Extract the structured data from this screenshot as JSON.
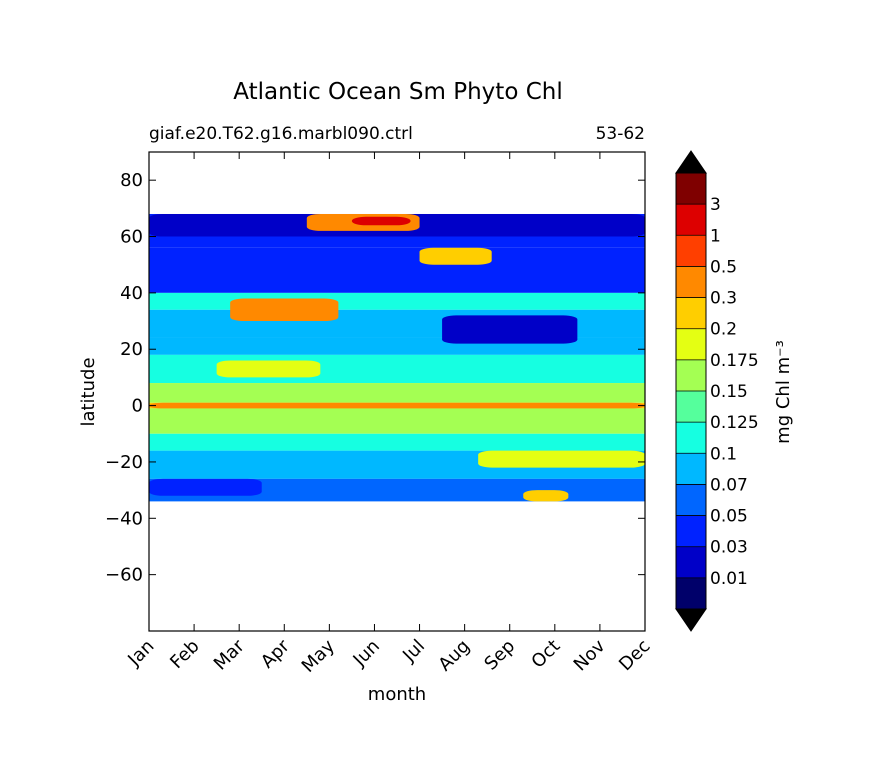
{
  "chart_data": {
    "type": "heatmap",
    "title": "Atlantic Ocean Sm Phyto Chl",
    "subtitle_left": "giaf.e20.T62.g16.marbl090.ctrl",
    "subtitle_right": "53-62",
    "xlabel": "month",
    "ylabel": "latitude",
    "x_ticks": [
      "Jan",
      "Feb",
      "Mar",
      "Apr",
      "May",
      "Jun",
      "Jul",
      "Aug",
      "Sep",
      "Oct",
      "Nov",
      "Dec"
    ],
    "xlim": [
      1,
      12
    ],
    "y_ticks": [
      "80",
      "60",
      "40",
      "20",
      "0",
      "−20",
      "−40",
      "−60"
    ],
    "ylim": [
      -80,
      90
    ],
    "data_extent_lat": [
      -34,
      68
    ],
    "colorbar_label": "mg Chl m⁻³",
    "colorbar_levels": [
      "0.01",
      "0.03",
      "0.05",
      "0.07",
      "0.1",
      "0.125",
      "0.15",
      "0.175",
      "0.2",
      "0.3",
      "0.5",
      "1",
      "3"
    ],
    "colorbar_colors": [
      "#00006a",
      "#0000c8",
      "#0022ff",
      "#0066ff",
      "#00b8ff",
      "#16ffe1",
      "#55ff9c",
      "#a4ff53",
      "#e4ff13",
      "#ffce00",
      "#ff8900",
      "#ff3f00",
      "#dd0000",
      "#7f0000"
    ],
    "colorbar_extend": "both",
    "grid": false,
    "regions": [
      {
        "lat": [
          60,
          68
        ],
        "month": [
          1,
          12
        ],
        "level_index": 1
      },
      {
        "lat": [
          62,
          68
        ],
        "month": [
          4.5,
          7
        ],
        "level_index": 10
      },
      {
        "lat": [
          64,
          67
        ],
        "month": [
          5.5,
          6.8
        ],
        "level_index": 12
      },
      {
        "lat": [
          50,
          56
        ],
        "month": [
          7,
          8.6
        ],
        "level_index": 9
      },
      {
        "lat": [
          30,
          38
        ],
        "month": [
          2.8,
          5.2
        ],
        "level_index": 10
      },
      {
        "lat": [
          22,
          32
        ],
        "month": [
          7.5,
          10.5
        ],
        "level_index": 1
      },
      {
        "lat": [
          10,
          16
        ],
        "month": [
          2.5,
          4.8
        ],
        "level_index": 8
      },
      {
        "lat": [
          -1,
          1
        ],
        "month": [
          1,
          12
        ],
        "level_index": 10
      },
      {
        "lat": [
          -22,
          -16
        ],
        "month": [
          8.3,
          12
        ],
        "level_index": 8
      },
      {
        "lat": [
          -34,
          -30
        ],
        "month": [
          9.3,
          10.3
        ],
        "level_index": 9
      },
      {
        "lat": [
          -32,
          -26
        ],
        "month": [
          1,
          3.5
        ],
        "level_index": 2
      }
    ]
  }
}
